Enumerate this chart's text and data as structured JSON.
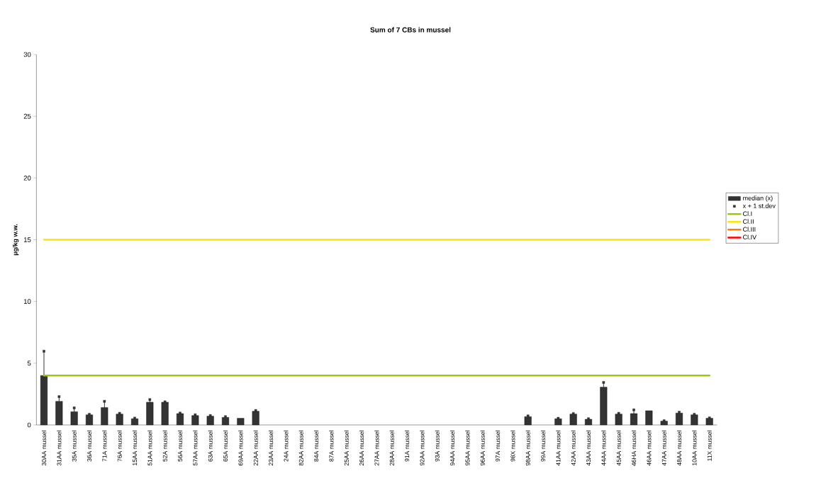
{
  "chart_data": {
    "type": "bar",
    "title": "Sum of 7 CBs in mussel",
    "ylabel": "µg/kg w.w.",
    "categories": [
      "30AA mussel",
      "31AA mussel",
      "35A mussel",
      "36A mussel",
      "71A mussel",
      "76A mussel",
      "15AA mussel",
      "51AA mussel",
      "52A mussel",
      "56A mussel",
      "57AA mussel",
      "63A mussel",
      "65A mussel",
      "69AA mussel",
      "22AA mussel",
      "23AA mussel",
      "24A mussel",
      "82AA mussel",
      "84A mussel",
      "87A mussel",
      "25AA mussel",
      "26AA mussel",
      "27AA mussel",
      "28AA mussel",
      "91A mussel",
      "92AA mussel",
      "93A mussel",
      "94AA mussel",
      "95AA mussel",
      "96AA mussel",
      "97A mussel",
      "98X mussel",
      "98AA mussel",
      "99A mussel",
      "41AA mussel",
      "42AA mussel",
      "43AA mussel",
      "44AA mussel",
      "45AA mussel",
      "46HA mussel",
      "46AA mussel",
      "47AA mussel",
      "48AA mussel",
      "10AA mussel",
      "11X mussel"
    ],
    "series": [
      {
        "name": "median (x)",
        "color": "#333333",
        "values": [
          4.0,
          1.91,
          1.07,
          0.82,
          1.41,
          0.88,
          0.5,
          1.84,
          1.84,
          0.92,
          0.76,
          0.71,
          0.61,
          0.54,
          1.11,
          null,
          null,
          null,
          null,
          null,
          null,
          null,
          null,
          null,
          null,
          null,
          null,
          null,
          null,
          null,
          null,
          null,
          0.67,
          null,
          0.5,
          0.88,
          0.46,
          3.06,
          0.88,
          0.92,
          1.15,
          0.31,
          0.96,
          0.82,
          0.54
        ],
        "errors": [
          [
            4.0,
            5.97
          ],
          [
            1.91,
            2.29
          ],
          [
            1.07,
            1.38
          ],
          null,
          [
            1.41,
            1.91
          ],
          null,
          null,
          [
            1.84,
            2.05
          ],
          null,
          null,
          null,
          null,
          null,
          null,
          null,
          null,
          null,
          null,
          null,
          null,
          null,
          null,
          null,
          null,
          null,
          null,
          null,
          null,
          null,
          null,
          null,
          null,
          null,
          null,
          null,
          null,
          null,
          [
            3.06,
            3.44
          ],
          null,
          [
            0.92,
            1.22
          ],
          null,
          null,
          null,
          null,
          null
        ]
      },
      {
        "name": "x + 1 st.dev",
        "type": "scatter",
        "color": "#333333",
        "values": [
          5.97,
          2.29,
          1.38,
          0.86,
          1.91,
          0.94,
          0.55,
          2.05,
          1.87,
          0.96,
          0.82,
          0.76,
          0.67,
          null,
          1.17,
          null,
          null,
          null,
          null,
          null,
          null,
          null,
          null,
          null,
          null,
          null,
          null,
          null,
          null,
          null,
          null,
          null,
          0.73,
          null,
          0.54,
          0.92,
          0.5,
          3.44,
          0.94,
          1.22,
          null,
          0.34,
          1.03,
          0.86,
          0.57
        ]
      },
      {
        "name": "Cl.III",
        "type": "line",
        "color": "#ff7f00",
        "values": [
          null,
          null,
          null,
          null,
          null,
          null,
          null,
          null,
          null,
          null,
          null,
          null,
          null,
          null,
          null,
          null,
          null,
          null,
          null,
          null,
          null,
          null,
          null,
          null,
          null,
          null,
          null,
          null,
          null,
          null,
          null,
          null,
          null,
          null,
          null,
          null,
          null,
          null,
          null,
          null,
          null,
          null,
          null,
          null,
          null
        ]
      },
      {
        "name": "Cl.IV",
        "type": "line",
        "color": "#ff0000",
        "values": [
          null,
          null,
          null,
          null,
          null,
          null,
          null,
          null,
          null,
          null,
          null,
          null,
          null,
          null,
          null,
          null,
          null,
          null,
          null,
          null,
          null,
          null,
          null,
          null,
          null,
          null,
          null,
          null,
          null,
          null,
          null,
          null,
          null,
          null,
          null,
          null,
          null,
          null,
          null,
          null,
          null,
          null,
          null,
          null,
          null
        ]
      }
    ],
    "ref_lines": [
      {
        "axis": "y",
        "value": 4,
        "label": "Cl.I",
        "color": "#99cc00"
      },
      {
        "axis": "y",
        "value": 15,
        "label": "Cl.II",
        "color": "#ffe500"
      }
    ],
    "ylim": [
      0,
      30
    ],
    "yticks": [
      0,
      5,
      10,
      15,
      20,
      25,
      30
    ],
    "legend": "right"
  }
}
